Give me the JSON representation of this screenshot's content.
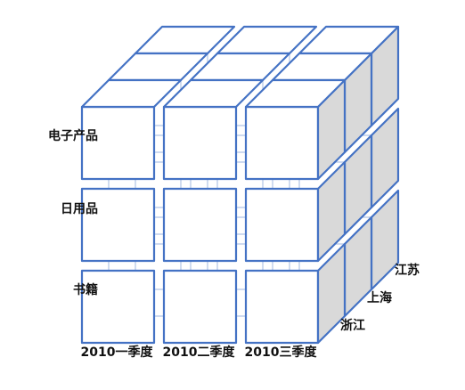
{
  "cube": {
    "rows": [
      "电子产品",
      "日用品",
      "书籍"
    ],
    "columns": [
      "2010一季度",
      "2010二季度",
      "2010三季度"
    ],
    "depth": [
      "浙江",
      "上海",
      "江苏"
    ]
  },
  "colors": {
    "edge": "#4472C4",
    "edge_faint": "#A9BFE3",
    "face_front": "#ffffff",
    "face_side": "#D9D9D9",
    "face_top": "#ffffff"
  }
}
